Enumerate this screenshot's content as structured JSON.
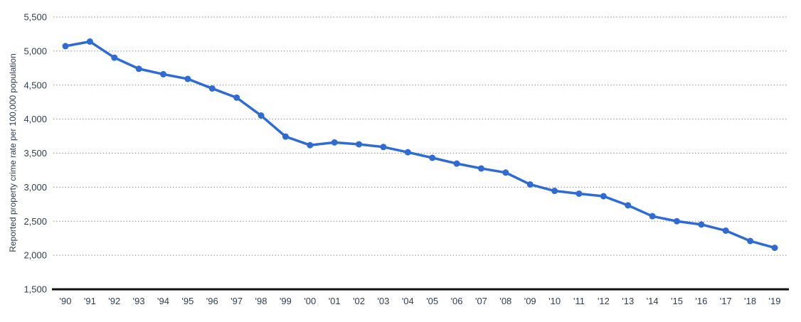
{
  "chart_data": {
    "type": "line",
    "title": "",
    "xlabel": "",
    "ylabel": "Reported property crime rate per 100,000 population",
    "categories": [
      "'90",
      "'91",
      "'92",
      "'93",
      "'94",
      "'95",
      "'96",
      "'97",
      "'98",
      "'99",
      "'00",
      "'01",
      "'02",
      "'03",
      "'04",
      "'05",
      "'06",
      "'07",
      "'08",
      "'09",
      "'10",
      "'11",
      "'12",
      "'13",
      "'14",
      "'15",
      "'16",
      "'17",
      "'18",
      "'19"
    ],
    "series": [
      {
        "name": "Reported property crime rate per 100,000 population",
        "values": [
          5073,
          5140,
          4904,
          4740,
          4660,
          4591,
          4451,
          4316,
          4053,
          3744,
          3618,
          3658,
          3631,
          3591,
          3514,
          3432,
          3347,
          3276,
          3215,
          3041,
          2946,
          2905,
          2868,
          2734,
          2574,
          2500,
          2452,
          2362,
          2210,
          2110
        ]
      }
    ],
    "ylim": [
      1500,
      5500
    ],
    "ytick_values": [
      1500,
      2000,
      2500,
      3000,
      3500,
      4000,
      4500,
      5000,
      5500
    ],
    "ytick_labels": [
      "1,500",
      "2,000",
      "2,500",
      "3,000",
      "3,500",
      "4,000",
      "4,500",
      "5,000",
      "5,500"
    ],
    "legend": "none",
    "grid": "horizontal-dotted",
    "marker": "circle",
    "colors": {
      "line": "#2e6bd5",
      "marker": "#2e6bd5",
      "axis_text": "#2f3e50",
      "gridline": "#8a8a8a",
      "baseline": "#111111",
      "background": "#ffffff"
    }
  }
}
